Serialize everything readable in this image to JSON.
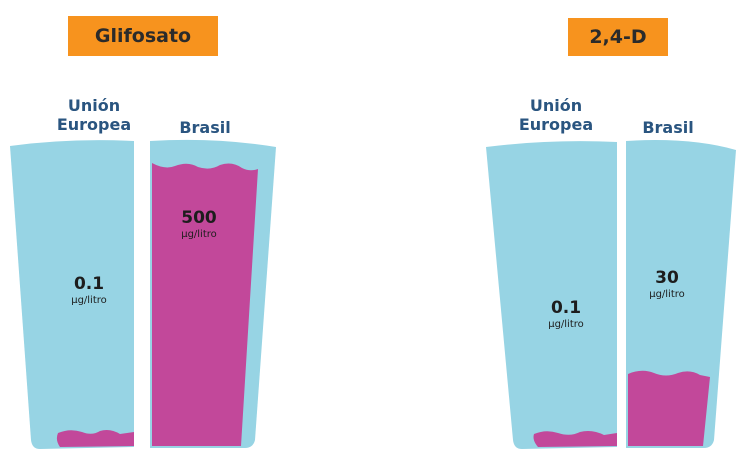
{
  "panels": [
    {
      "title": "Glifosato",
      "left_label": "Unión Europea",
      "right_label": "Brasil",
      "left_value": "0.1",
      "left_unit": "µg/litro",
      "right_value": "500",
      "right_unit": "µg/litro",
      "right_fill_fraction": 0.96,
      "left_fill_fraction": 0.05
    },
    {
      "title": "2,4-D",
      "left_label": "Unión Europea",
      "right_label": "Brasil",
      "left_value": "0.1",
      "left_unit": "µg/litro",
      "right_value": "30",
      "right_unit": "µg/litro",
      "right_fill_fraction": 0.25,
      "left_fill_fraction": 0.05
    }
  ],
  "colors": {
    "tag": "#f7931e",
    "glass": "#97d4e4",
    "fill": "#c2489a",
    "label": "#2a5580"
  }
}
